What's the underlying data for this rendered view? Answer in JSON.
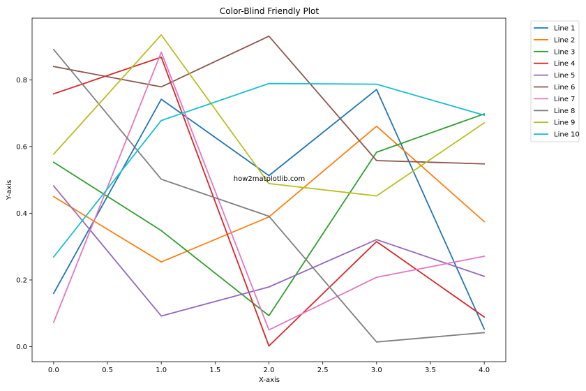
{
  "chart_data": {
    "type": "line",
    "title": "Color-Blind Friendly Plot",
    "xlabel": "X-axis",
    "ylabel": "Y-axis",
    "xlim": [
      -0.2,
      4.2
    ],
    "ylim": [
      -0.045,
      0.985
    ],
    "x": [
      0,
      1,
      2,
      3,
      4
    ],
    "xticks": [
      0.0,
      0.5,
      1.0,
      1.5,
      2.0,
      2.5,
      3.0,
      3.5,
      4.0
    ],
    "xtick_labels": [
      "0.0",
      "0.5",
      "1.0",
      "1.5",
      "2.0",
      "2.5",
      "3.0",
      "3.5",
      "4.0"
    ],
    "yticks": [
      0.0,
      0.2,
      0.4,
      0.6,
      0.8
    ],
    "ytick_labels": [
      "0.0",
      "0.2",
      "0.4",
      "0.6",
      "0.8"
    ],
    "grid": false,
    "legend_position": "outside-top-right",
    "annotation": "how2matplotlib.com",
    "series": [
      {
        "name": "Line 1",
        "color": "#1f77b4",
        "values": [
          0.16,
          0.742,
          0.513,
          0.771,
          0.053
        ]
      },
      {
        "name": "Line 2",
        "color": "#ff7f0e",
        "values": [
          0.45,
          0.254,
          0.389,
          0.661,
          0.375
        ]
      },
      {
        "name": "Line 3",
        "color": "#2ca02c",
        "values": [
          0.553,
          0.348,
          0.093,
          0.583,
          0.698
        ]
      },
      {
        "name": "Line 4",
        "color": "#d62728",
        "values": [
          0.758,
          0.868,
          0.002,
          0.315,
          0.089
        ]
      },
      {
        "name": "Line 5",
        "color": "#9467bd",
        "values": [
          0.482,
          0.092,
          0.179,
          0.321,
          0.211
        ]
      },
      {
        "name": "Line 6",
        "color": "#8c564b",
        "values": [
          0.84,
          0.779,
          0.931,
          0.558,
          0.548
        ]
      },
      {
        "name": "Line 7",
        "color": "#e377c2",
        "values": [
          0.073,
          0.883,
          0.05,
          0.208,
          0.271
        ]
      },
      {
        "name": "Line 8",
        "color": "#7f7f7f",
        "values": [
          0.891,
          0.502,
          0.391,
          0.014,
          0.042
        ]
      },
      {
        "name": "Line 9",
        "color": "#bcbd22",
        "values": [
          0.577,
          0.935,
          0.489,
          0.452,
          0.671
        ]
      },
      {
        "name": "Line 10",
        "color": "#17becf",
        "values": [
          0.269,
          0.678,
          0.789,
          0.787,
          0.694
        ]
      }
    ]
  }
}
